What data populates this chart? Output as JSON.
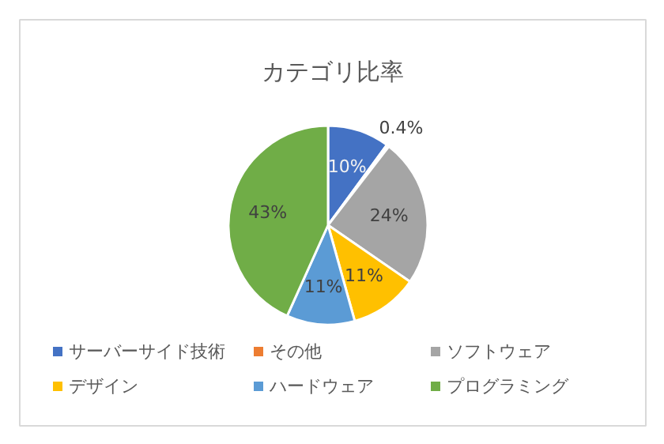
{
  "chart_data": {
    "type": "pie",
    "title": "カテゴリ比率",
    "categories": [
      "サーバーサイド技術",
      "その他",
      "ソフトウェア",
      "デザイン",
      "ハードウェア",
      "プログラミング"
    ],
    "values": [
      10,
      0.4,
      24,
      11,
      11,
      43
    ],
    "colors": [
      "#4472c4",
      "#ed7d31",
      "#a5a5a5",
      "#ffc000",
      "#5b9bd5",
      "#70ad47"
    ],
    "value_labels": [
      "10%",
      "0.4%",
      "24%",
      "11%",
      "11%",
      "43%"
    ],
    "legend": "bottom"
  }
}
